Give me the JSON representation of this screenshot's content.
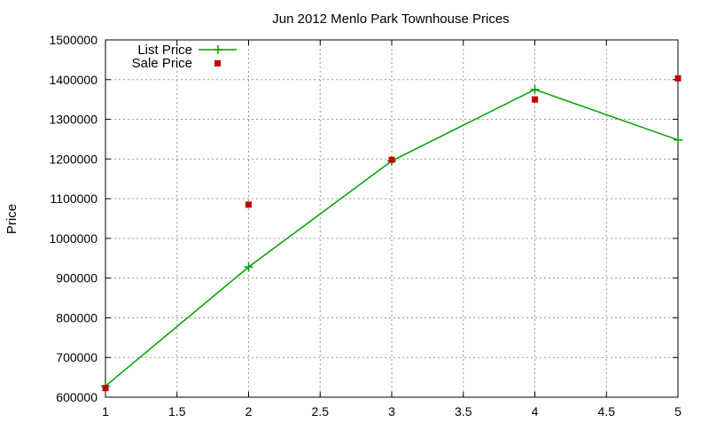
{
  "chart_data": {
    "type": "line",
    "title": "Jun 2012 Menlo Park Townhouse Prices",
    "xlabel": "",
    "ylabel": "Price",
    "xlim": [
      1,
      5
    ],
    "ylim": [
      600000,
      1500000
    ],
    "x_ticks": [
      "1",
      "1.5",
      "2",
      "2.5",
      "3",
      "3.5",
      "4",
      "4.5",
      "5"
    ],
    "y_ticks": [
      "600000",
      "700000",
      "800000",
      "900000",
      "1000000",
      "1100000",
      "1200000",
      "1300000",
      "1400000",
      "1500000"
    ],
    "grid": true,
    "legend_position": "top-left",
    "series": [
      {
        "name": "List Price",
        "style": "line-with-plus-markers",
        "color": "#00a000",
        "x": [
          1,
          2,
          3,
          4,
          5
        ],
        "values": [
          628000,
          928000,
          1195000,
          1375000,
          1248000
        ]
      },
      {
        "name": "Sale Price",
        "style": "square-markers",
        "color": "#c00000",
        "x": [
          1,
          2,
          3,
          4,
          5
        ],
        "values": [
          623000,
          1085000,
          1198000,
          1350000,
          1403000
        ]
      }
    ]
  }
}
